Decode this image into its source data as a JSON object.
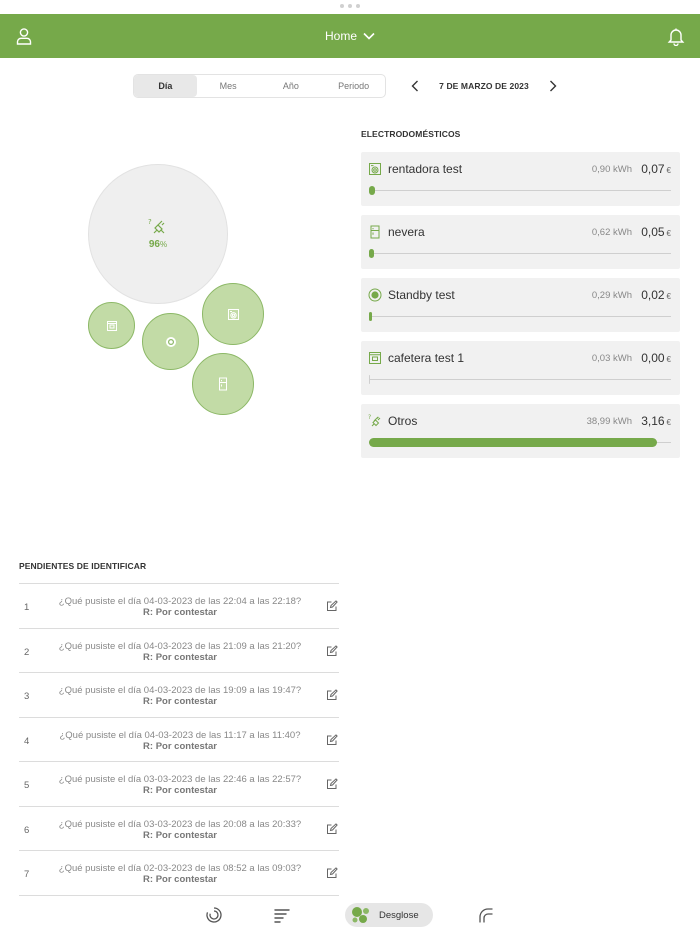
{
  "header": {
    "title": "Home",
    "bg_color": "#76a94a",
    "icons": [
      "user-icon",
      "chevron-down-icon",
      "bell-icon"
    ]
  },
  "period_selector": {
    "options": [
      "Día",
      "Mes",
      "Año",
      "Periodo"
    ],
    "selected": "Día"
  },
  "date_nav": {
    "label": "7 DE MARZO DE 2023"
  },
  "bubbles": {
    "main_percent": "96",
    "main_unit": "%"
  },
  "appliances": {
    "title": "ELECTRODOMÉSTICOS",
    "currency": "€",
    "items": [
      {
        "name": "rentadora test",
        "kwh": "0,90 kWh",
        "cost": "0,07",
        "bar_fraction": 0.02,
        "icon": "washing-machine-icon"
      },
      {
        "name": "nevera",
        "kwh": "0,62 kWh",
        "cost": "0,05",
        "bar_fraction": 0.016,
        "icon": "fridge-icon"
      },
      {
        "name": "Standby test",
        "kwh": "0,29 kWh",
        "cost": "0,02",
        "bar_fraction": 0.007,
        "icon": "standby-icon"
      },
      {
        "name": "cafetera test 1",
        "kwh": "0,03 kWh",
        "cost": "0,00",
        "bar_fraction": 0.0,
        "icon": "coffee-maker-icon"
      },
      {
        "name": "Otros",
        "kwh": "38,99 kWh",
        "cost": "3,16",
        "bar_fraction": 0.955,
        "icon": "unknown-plug-icon"
      }
    ]
  },
  "pending": {
    "title": "PENDIENTES DE IDENTIFICAR",
    "rows": [
      {
        "num": "1",
        "question": "¿Qué pusiste el día 04-03-2023 de las 22:04 a las 22:18?",
        "answer": "R: Por contestar"
      },
      {
        "num": "2",
        "question": "¿Qué pusiste el día 04-03-2023 de las 21:09 a las 21:20?",
        "answer": "R: Por contestar"
      },
      {
        "num": "3",
        "question": "¿Qué pusiste el día 04-03-2023 de las 19:09 a las 19:47?",
        "answer": "R: Por contestar"
      },
      {
        "num": "4",
        "question": "¿Qué pusiste el día 04-03-2023 de las 11:17 a las 11:40?",
        "answer": "R: Por contestar"
      },
      {
        "num": "5",
        "question": "¿Qué pusiste el día 03-03-2023 de las 22:46 a las 22:57?",
        "answer": "R: Por contestar"
      },
      {
        "num": "6",
        "question": "¿Qué pusiste el día 03-03-2023 de las 20:08 a las 20:33?",
        "answer": "R: Por contestar"
      },
      {
        "num": "7",
        "question": "¿Qué pusiste el día 02-03-2023 de las 08:52 a las 09:03?",
        "answer": "R: Por contestar"
      }
    ]
  },
  "tabbar": {
    "active_label": "Desglose",
    "icons": [
      "consumption-gauge-icon",
      "bars-list-icon",
      "bubbles-breakdown-icon",
      "power-curve-icon"
    ]
  },
  "colors": {
    "accent": "#76a94a",
    "bubble_fill": "#c2dba6",
    "bubble_stroke": "#8cb866"
  }
}
